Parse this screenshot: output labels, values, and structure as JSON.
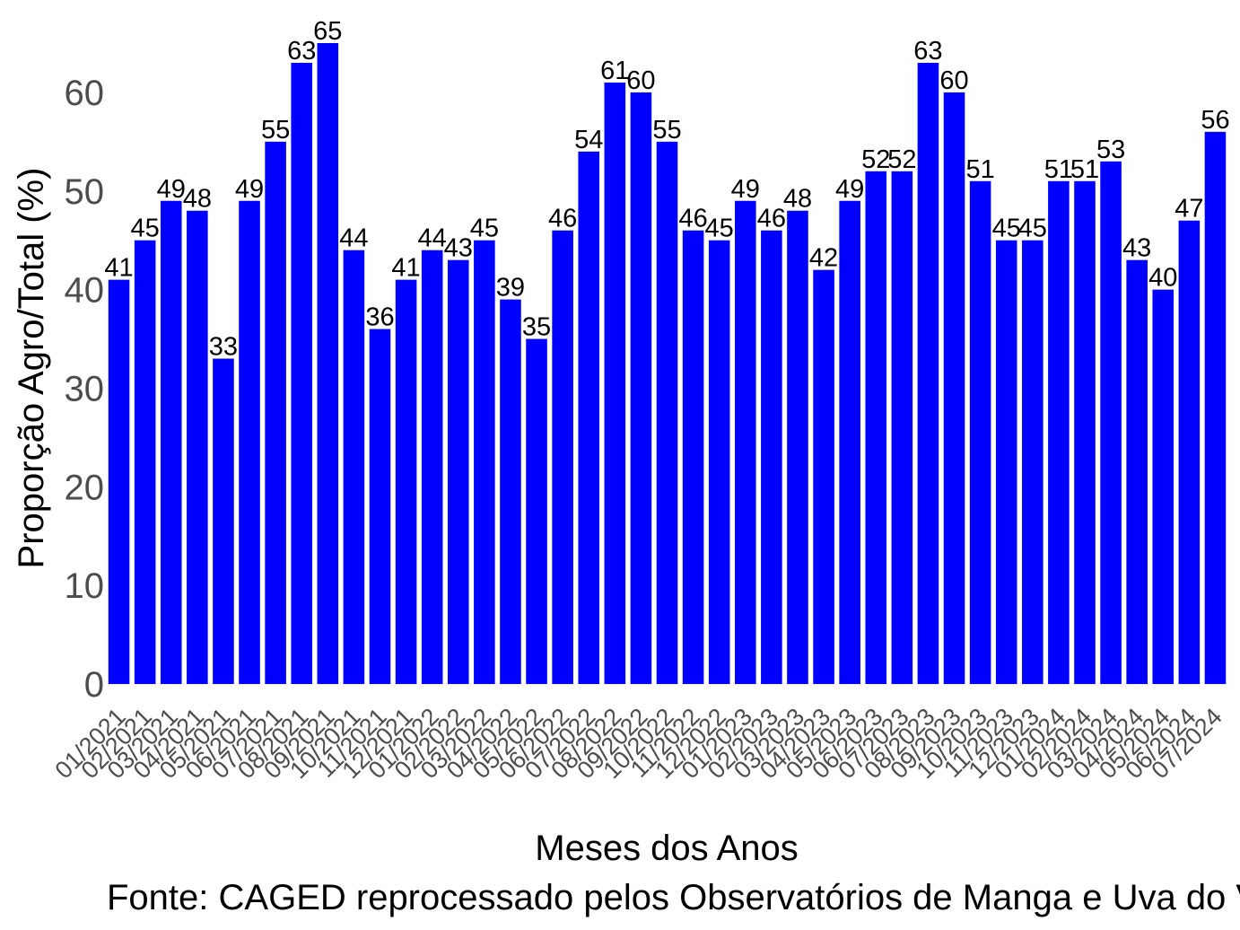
{
  "chart_data": {
    "type": "bar",
    "categories": [
      "01/2021",
      "02/2021",
      "03/2021",
      "04/2021",
      "05/2021",
      "06/2021",
      "07/2021",
      "08/2021",
      "09/2021",
      "10/2021",
      "11/2021",
      "12/2021",
      "01/2022",
      "02/2022",
      "03/2022",
      "04/2022",
      "05/2022",
      "06/2022",
      "07/2022",
      "08/2022",
      "09/2022",
      "10/2022",
      "11/2022",
      "12/2022",
      "01/2023",
      "02/2023",
      "03/2023",
      "04/2023",
      "05/2023",
      "06/2023",
      "07/2023",
      "08/2023",
      "09/2023",
      "10/2023",
      "11/2023",
      "12/2023",
      "01/2024",
      "02/2024",
      "03/2024",
      "04/2024",
      "05/2024",
      "06/2024",
      "07/2024"
    ],
    "values": [
      41,
      45,
      49,
      48,
      33,
      49,
      55,
      63,
      65,
      44,
      36,
      41,
      44,
      43,
      45,
      39,
      35,
      46,
      54,
      61,
      60,
      55,
      46,
      45,
      49,
      46,
      48,
      42,
      49,
      52,
      52,
      63,
      60,
      51,
      45,
      45,
      51,
      51,
      53,
      43,
      40,
      47,
      56
    ],
    "data_labels": [
      "41",
      "45",
      "49",
      "48",
      "33",
      "49",
      "55",
      "63",
      "65",
      "44",
      "36",
      "41",
      "44",
      "43",
      "45",
      "39",
      "35",
      "46",
      "54",
      "61",
      "60",
      "55",
      "46",
      "45",
      "49",
      "46",
      "48",
      "42",
      "49",
      "52",
      "52",
      "63",
      "60",
      "51",
      "45",
      "45",
      "51",
      "51",
      "53",
      "43",
      "40",
      "47",
      "56"
    ],
    "yticks": [
      0,
      10,
      20,
      30,
      40,
      50,
      60
    ],
    "ylim": [
      0,
      65
    ],
    "xlabel": "Meses dos Anos",
    "ylabel": "Proporção Agro/Total (%)",
    "caption": "Fonte: CAGED reprocessado pelos Observatórios de Manga e Uva do Vale do São Francisco",
    "bar_color": "#0000ff",
    "grid": false,
    "legend": "none"
  }
}
